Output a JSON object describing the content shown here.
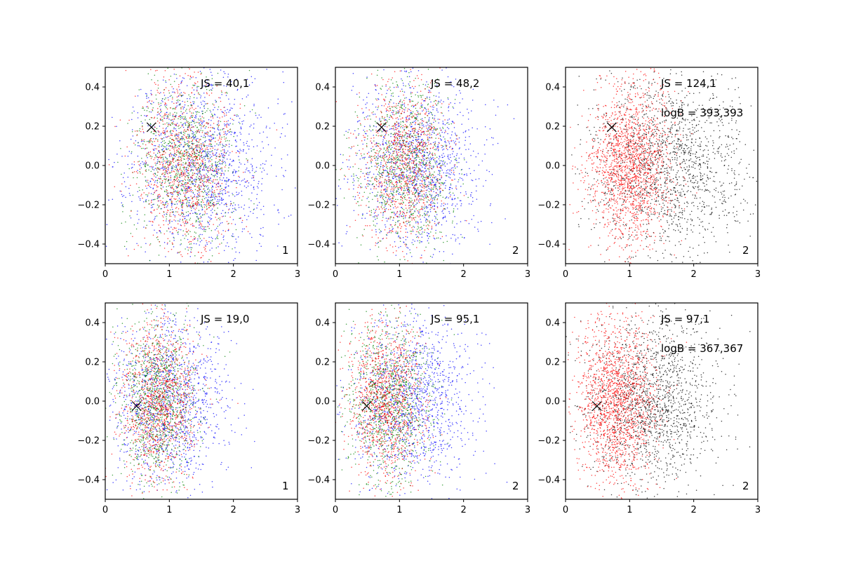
{
  "chart_data": [
    {
      "type": "scatter",
      "xlim": [
        0,
        3
      ],
      "ylim": [
        -0.5,
        0.5
      ],
      "xticks": [
        "0",
        "1",
        "2",
        "3"
      ],
      "yticks": [
        "−0.4",
        "−0.2",
        "0.0",
        "0.2",
        "0.4"
      ],
      "annotations": [
        "JS = 40,1"
      ],
      "corner_label": "1",
      "marker_x": {
        "x": 0.72,
        "y": 0.195
      },
      "series": [
        {
          "color": "#0000ff",
          "n": 1400,
          "cx": 1.5,
          "cy": 0.0,
          "sx": 0.55,
          "sy": 0.24,
          "seed": 11
        },
        {
          "color": "#008000",
          "n": 1000,
          "cx": 1.25,
          "cy": 0.0,
          "sx": 0.38,
          "sy": 0.22,
          "seed": 12
        },
        {
          "color": "#ff0000",
          "n": 1000,
          "cx": 1.25,
          "cy": 0.0,
          "sx": 0.38,
          "sy": 0.22,
          "seed": 13
        }
      ]
    },
    {
      "type": "scatter",
      "xlim": [
        0,
        3
      ],
      "ylim": [
        -0.5,
        0.5
      ],
      "xticks": [
        "0",
        "1",
        "2",
        "3"
      ],
      "yticks": [
        "−0.4",
        "−0.2",
        "0.0",
        "0.2",
        "0.4"
      ],
      "annotations": [
        "JS = 48,2"
      ],
      "corner_label": "2",
      "marker_x": {
        "x": 0.72,
        "y": 0.195
      },
      "series": [
        {
          "color": "#0000ff",
          "n": 1300,
          "cx": 1.3,
          "cy": 0.0,
          "sx": 0.5,
          "sy": 0.22,
          "seed": 21
        },
        {
          "color": "#008000",
          "n": 1000,
          "cx": 1.1,
          "cy": 0.0,
          "sx": 0.35,
          "sy": 0.21,
          "seed": 22
        },
        {
          "color": "#ff0000",
          "n": 1000,
          "cx": 1.05,
          "cy": 0.0,
          "sx": 0.33,
          "sy": 0.21,
          "seed": 23
        }
      ]
    },
    {
      "type": "scatter",
      "xlim": [
        0,
        3
      ],
      "ylim": [
        -0.5,
        0.5
      ],
      "xticks": [
        "0",
        "1",
        "2",
        "3"
      ],
      "yticks": [
        "−0.4",
        "−0.2",
        "0.0",
        "0.2",
        "0.4"
      ],
      "annotations": [
        "JS = 124,1",
        "logB = 393,393"
      ],
      "corner_label": "2",
      "marker_x": {
        "x": 0.72,
        "y": 0.195
      },
      "series": [
        {
          "color": "#000000",
          "n": 1600,
          "cx": 1.6,
          "cy": 0.0,
          "sx": 0.6,
          "sy": 0.22,
          "seed": 31
        },
        {
          "color": "#ff0000",
          "n": 1700,
          "cx": 1.0,
          "cy": 0.0,
          "sx": 0.32,
          "sy": 0.21,
          "seed": 32
        }
      ]
    },
    {
      "type": "scatter",
      "xlim": [
        0,
        3
      ],
      "ylim": [
        -0.5,
        0.5
      ],
      "xticks": [
        "0",
        "1",
        "2",
        "3"
      ],
      "yticks": [
        "−0.4",
        "−0.2",
        "0.0",
        "0.2",
        "0.4"
      ],
      "annotations": [
        "JS = 19,0"
      ],
      "corner_label": "1",
      "marker_x": {
        "x": 0.49,
        "y": -0.025
      },
      "series": [
        {
          "color": "#0000ff",
          "n": 1300,
          "cx": 1.0,
          "cy": 0.0,
          "sx": 0.45,
          "sy": 0.22,
          "seed": 41
        },
        {
          "color": "#008000",
          "n": 1100,
          "cx": 0.82,
          "cy": 0.0,
          "sx": 0.3,
          "sy": 0.21,
          "seed": 42
        },
        {
          "color": "#ff0000",
          "n": 1100,
          "cx": 0.82,
          "cy": 0.0,
          "sx": 0.3,
          "sy": 0.21,
          "seed": 43
        }
      ]
    },
    {
      "type": "scatter",
      "xlim": [
        0,
        3
      ],
      "ylim": [
        -0.5,
        0.5
      ],
      "xticks": [
        "0",
        "1",
        "2",
        "3"
      ],
      "yticks": [
        "−0.4",
        "−0.2",
        "0.0",
        "0.2",
        "0.4"
      ],
      "annotations": [
        "JS = 95,1"
      ],
      "corner_label": "2",
      "marker_x": {
        "x": 0.49,
        "y": -0.025
      },
      "series": [
        {
          "color": "#0000ff",
          "n": 1300,
          "cx": 1.2,
          "cy": 0.0,
          "sx": 0.48,
          "sy": 0.22,
          "seed": 51
        },
        {
          "color": "#008000",
          "n": 1100,
          "cx": 0.85,
          "cy": 0.0,
          "sx": 0.32,
          "sy": 0.21,
          "seed": 52
        },
        {
          "color": "#ff0000",
          "n": 1100,
          "cx": 0.8,
          "cy": 0.0,
          "sx": 0.3,
          "sy": 0.21,
          "seed": 53
        }
      ]
    },
    {
      "type": "scatter",
      "xlim": [
        0,
        3
      ],
      "ylim": [
        -0.5,
        0.5
      ],
      "xticks": [
        "0",
        "1",
        "2",
        "3"
      ],
      "yticks": [
        "−0.4",
        "−0.2",
        "0.0",
        "0.2",
        "0.4"
      ],
      "annotations": [
        "JS = 97,1",
        "logB = 367,367"
      ],
      "corner_label": "2",
      "marker_x": {
        "x": 0.49,
        "y": -0.025
      },
      "series": [
        {
          "color": "#000000",
          "n": 1600,
          "cx": 1.35,
          "cy": 0.0,
          "sx": 0.5,
          "sy": 0.22,
          "seed": 61
        },
        {
          "color": "#ff0000",
          "n": 1700,
          "cx": 0.8,
          "cy": 0.0,
          "sx": 0.3,
          "sy": 0.21,
          "seed": 62
        }
      ]
    }
  ]
}
